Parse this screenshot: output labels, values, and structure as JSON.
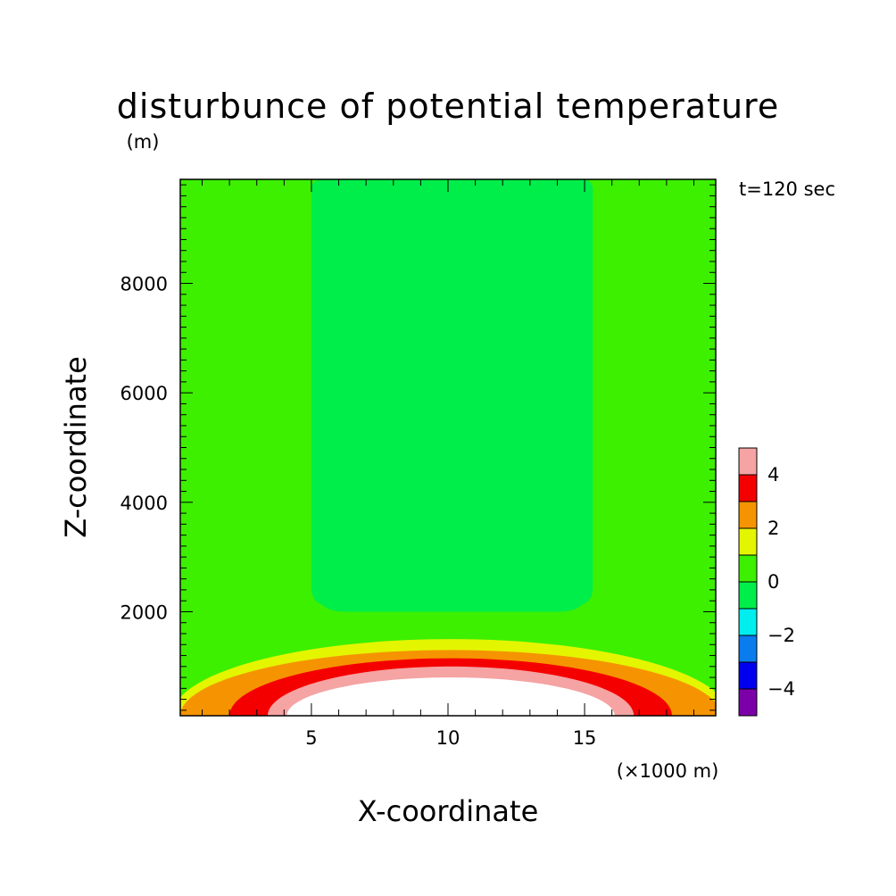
{
  "chart_data": {
    "type": "heatmap",
    "title": "disturbunce of potential temperature",
    "subtitle": "(m)",
    "annotation": "t=120 sec",
    "xlabel": "X-coordinate",
    "xunit": "(×1000 m)",
    "ylabel": "Z-coordinate",
    "xlim": [
      0.2,
      19.8
    ],
    "ylim": [
      100,
      9900
    ],
    "xticks": [
      5,
      10,
      15
    ],
    "yticks": [
      2000,
      4000,
      6000,
      8000
    ],
    "grid": false,
    "colorbar": {
      "placement": "right",
      "bounds": [
        -5,
        -4,
        -3,
        -2,
        -1,
        0,
        1,
        2,
        3,
        4,
        5
      ],
      "tick_labels": [
        "-4",
        "-2",
        "0",
        "2",
        "4"
      ],
      "tick_values": [
        -4,
        -2,
        0,
        2,
        4
      ],
      "colors": [
        "#7b00a8",
        "#0000ee",
        "#0a7cee",
        "#00eeee",
        "#00ee4a",
        "#3cf000",
        "#e4f500",
        "#f59400",
        "#f50000",
        "#f5a3a3"
      ]
    },
    "background_level_color": "#3cf000",
    "regions": [
      {
        "level": "0 to 1",
        "color": "#3cf000",
        "shape": "background",
        "x_range": [
          0.2,
          19.8
        ],
        "z_range": [
          100,
          9900
        ]
      },
      {
        "level": "-1 to 0",
        "color": "#00ee4a",
        "shape": "column",
        "x_range": [
          5.0,
          15.3
        ],
        "z_range": [
          2000,
          9900
        ]
      },
      {
        "level": "1 to 2",
        "color": "#e4f500",
        "shape": "dome",
        "center_x": 10.1,
        "half_width_x": 10.2,
        "top_z": 1500
      },
      {
        "level": "2 to 3",
        "color": "#f59400",
        "shape": "dome",
        "center_x": 10.1,
        "half_width_x": 9.9,
        "top_z": 1300
      },
      {
        "level": "3 to 4",
        "color": "#f50000",
        "shape": "dome",
        "center_x": 10.1,
        "half_width_x": 8.1,
        "top_z": 1150
      },
      {
        "level": "4 to 5",
        "color": "#f5a3a3",
        "shape": "dome",
        "center_x": 10.1,
        "half_width_x": 6.7,
        "top_z": 1000
      },
      {
        "level": "> 5",
        "color": "#ffffff",
        "shape": "dome",
        "center_x": 10.1,
        "half_width_x": 6.0,
        "top_z": 800
      }
    ]
  }
}
